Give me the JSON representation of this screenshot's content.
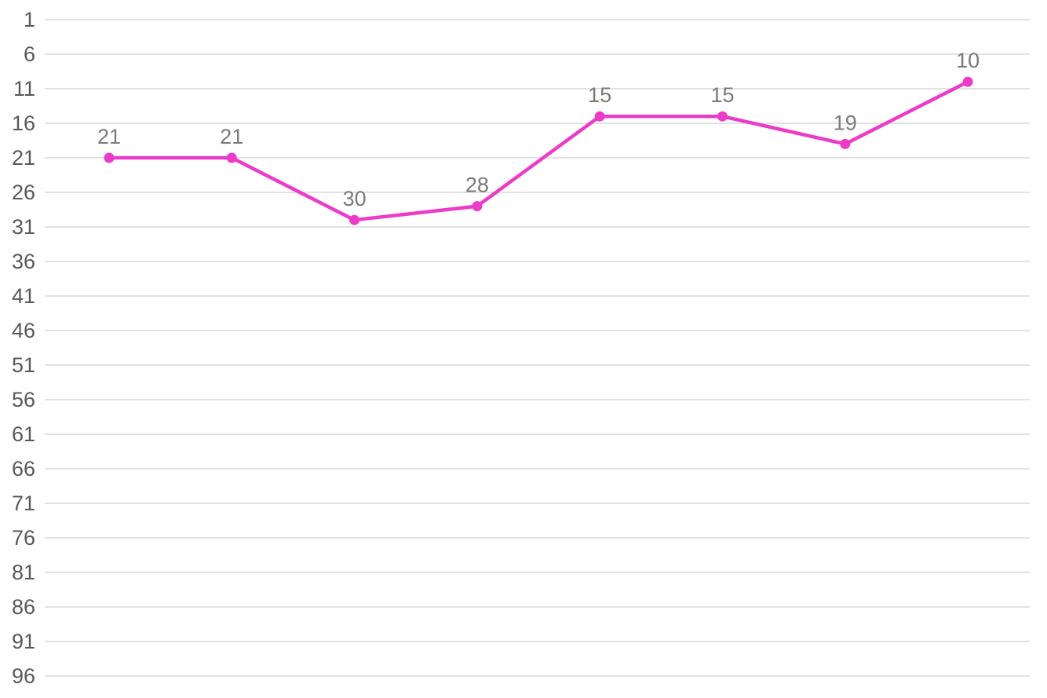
{
  "chart_data": {
    "type": "line",
    "title": "",
    "values": [
      21,
      21,
      30,
      28,
      15,
      15,
      19,
      10
    ],
    "point_labels": [
      "21",
      "21",
      "30",
      "28",
      "15",
      "15",
      "19",
      "10"
    ],
    "y_axis": {
      "ticks": [
        1,
        6,
        11,
        16,
        21,
        26,
        31,
        36,
        41,
        46,
        51,
        56,
        61,
        66,
        71,
        76,
        81,
        86,
        91,
        96
      ],
      "range": [
        1,
        96
      ],
      "inverted": true,
      "tick_interval": 5
    },
    "x_axis": {
      "labels_visible": false,
      "point_count": 8
    },
    "grid": true,
    "legend": false,
    "data_labels_position": "above",
    "marker": "circle",
    "colors": {
      "series": "#EC3BC9",
      "gridline": "#D9D9D9",
      "axis_label": "#595959",
      "data_label": "#7A7A7A",
      "background": "#FFFFFF"
    }
  }
}
